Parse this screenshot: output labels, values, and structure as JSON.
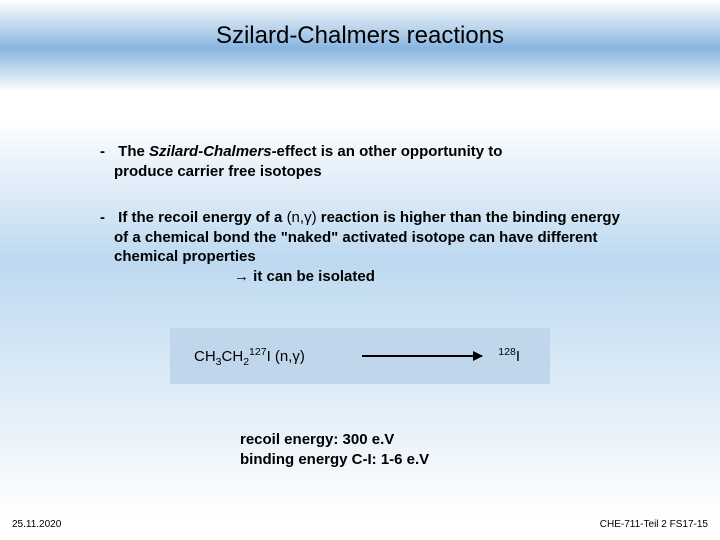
{
  "title": "Szilard-Chalmers reactions",
  "bullet1": {
    "dash": "-",
    "prefix": "The ",
    "em": "Szilard-Chalmers",
    "mid": "-effect is an other opportunity to",
    "line2": "produce carrier free isotopes"
  },
  "bullet2": {
    "dash": "-",
    "line1a": "If the recoil energy of a ",
    "reaction": "(n,γ)",
    "line1b": " reaction is higher than the binding energy",
    "line2": "of a chemical bond the \"naked\" activated isotope can have different",
    "line3": "chemical properties",
    "implies": "→ it can be isolated"
  },
  "reaction": {
    "reactant_pre": "CH",
    "sub1": "3",
    "mid1": "CH",
    "sub2": "2",
    "sup1": "127",
    "elem": "I ",
    "notation": "(n,γ)",
    "prod_sup": "128",
    "prod_elem": "I"
  },
  "energies": {
    "recoil": "recoil energy: 300 e.V",
    "binding": "binding energy C-I: 1-6 e.V"
  },
  "footer": {
    "left": "25.11.2020",
    "right": "CHE-711-Teil 2 FS17-15"
  },
  "colors": {
    "box_bg": "#c0d6ea"
  }
}
